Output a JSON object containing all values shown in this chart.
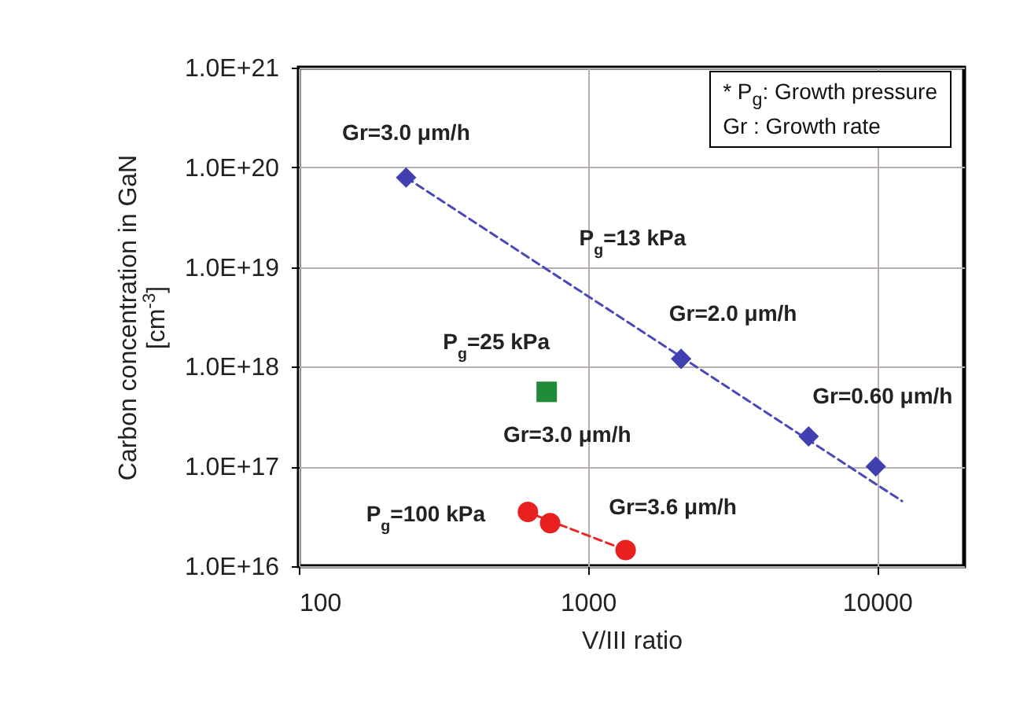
{
  "chart_data": {
    "type": "scatter",
    "xlabel": "V/III ratio",
    "ylabel": "Carbon concentration in GaN\n[cm$^{-3}$]",
    "log": "xy",
    "grid": true,
    "xlim": [
      100,
      20000
    ],
    "xticks": [
      100,
      1000,
      10000
    ],
    "ylim": [
      1e+16,
      1e+21
    ],
    "yticks": [
      {
        "value": 1e+16,
        "label": "1.0E+16"
      },
      {
        "value": 1e+17,
        "label": "1.0E+17"
      },
      {
        "value": 1e+18,
        "label": "1.0E+18"
      },
      {
        "value": 1e+19,
        "label": "1.0E+19"
      },
      {
        "value": 1e+20,
        "label": "1.0E+20"
      },
      {
        "value": 1e+21,
        "label": "1.0E+21"
      }
    ],
    "series": [
      {
        "type": "line",
        "color": "#4848b8",
        "line_style": "dashed",
        "marker": "none",
        "x": [
          235,
          12200
        ],
        "values": [
          7.9e+19,
          4.5e+16
        ]
      },
      {
        "type": "line",
        "color": "#e82828",
        "line_style": "dashed",
        "marker": "none",
        "x": [
          600,
          1350
        ],
        "values": [
          3.6e+16,
          1.45e+16
        ]
      },
      {
        "color": "#4040b0",
        "marker": "diamond",
        "x": [
          235,
          2100,
          5800,
          9900
        ],
        "values": [
          7.9e+19,
          1.2e+18,
          2e+17,
          1e+17
        ]
      },
      {
        "color": "#228b3a",
        "marker": "square",
        "x": [
          720
        ],
        "values": [
          5.6e+17
        ]
      },
      {
        "color": "#e82020",
        "marker": "circle",
        "x": [
          620,
          740,
          1350
        ],
        "values": [
          3.5e+16,
          2.7e+16,
          1.45e+16
        ]
      }
    ],
    "annotations": [
      {
        "text": "Gr=3.0 μm/h",
        "x": 235,
        "y": 7.9e+19
      },
      {
        "text": "P$_{g}$=13 kPa",
        "x": 1030,
        "y": 4.8e+18
      },
      {
        "text": "Gr=2.0 μm/h",
        "x": 2100,
        "y": 1.2e+18
      },
      {
        "text": "Gr=0.60 μm/h",
        "x": 5800,
        "y": 2e+17
      },
      {
        "text": "P$_{g}$=25 kPa",
        "x": 720,
        "y": 5.6e+17
      },
      {
        "text": "Gr=3.0 μm/h",
        "x": 720,
        "y": 5.6e+17
      },
      {
        "text": "P$_{g}$=100 kPa",
        "x": 620,
        "y": 3.5e+16
      },
      {
        "text": "Gr=3.6 μm/h",
        "x": 1350,
        "y": 1.45e+16
      },
      "* P$_{g}$: Growth pressure",
      "Gr : Growth rate"
    ]
  }
}
